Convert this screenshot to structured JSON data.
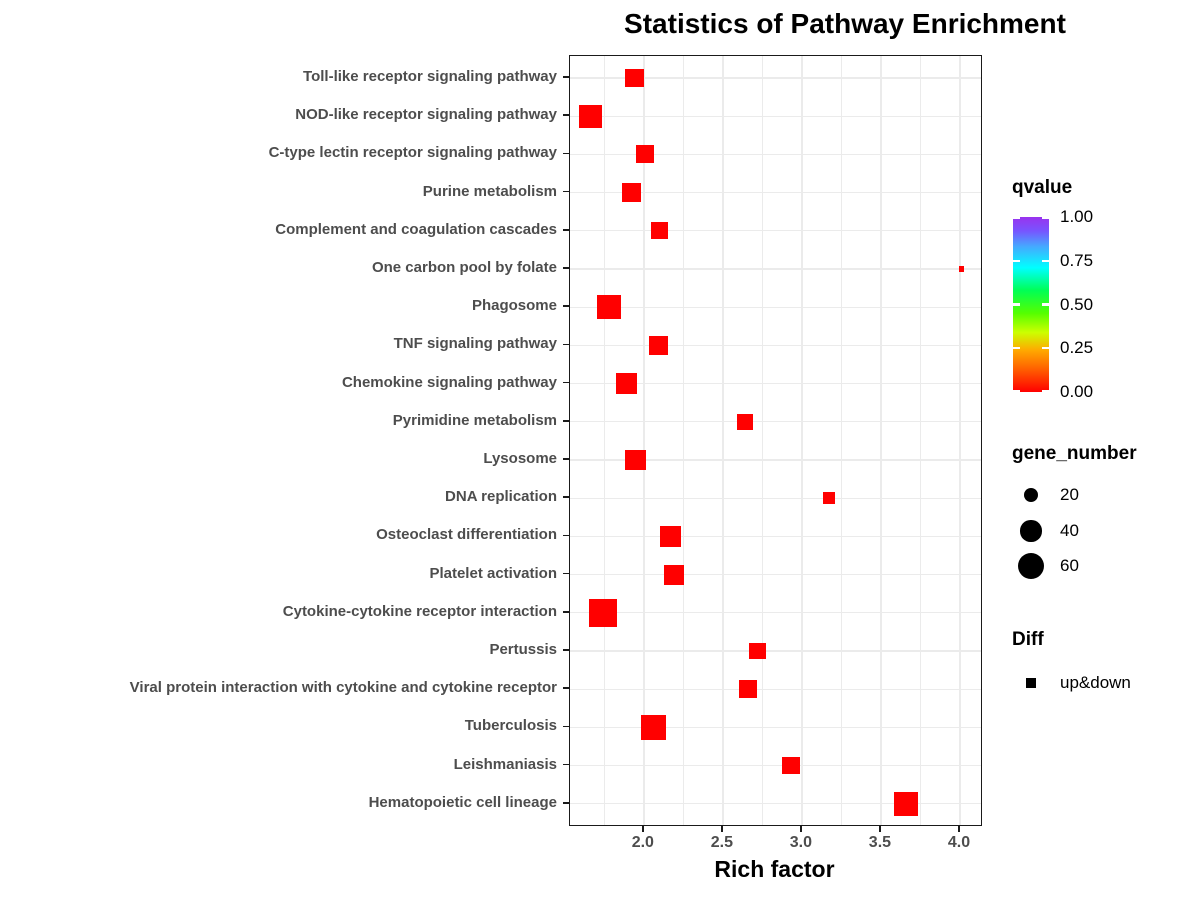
{
  "title": "Statistics of Pathway Enrichment",
  "x_axis": {
    "label": "Rich factor",
    "tick_labels": [
      "2.0",
      "2.5",
      "3.0",
      "3.5",
      "4.0"
    ],
    "tick_values": [
      2.0,
      2.5,
      3.0,
      3.5,
      4.0
    ],
    "minor_gridline_values": [
      1.75,
      2.0,
      2.25,
      2.5,
      2.75,
      3.0,
      3.25,
      3.5,
      3.75,
      4.0
    ],
    "min": 1.533,
    "max": 4.133
  },
  "chart_data": {
    "type": "scatter",
    "title": "Statistics of Pathway Enrichment",
    "xlabel": "Rich factor",
    "ylabel": "",
    "xlim": [
      1.533,
      4.133
    ],
    "grid": true,
    "point_shape": "filled-square",
    "point_color": "#ff0000",
    "categories": [
      "Toll-like receptor signaling pathway",
      "NOD-like receptor signaling pathway",
      "C-type lectin receptor signaling pathway",
      "Purine metabolism",
      "Complement and coagulation cascades",
      "One carbon pool by folate",
      "Phagosome",
      "TNF signaling pathway",
      "Chemokine signaling pathway",
      "Pyrimidine metabolism",
      "Lysosome",
      "DNA replication",
      "Osteoclast differentiation",
      "Platelet activation",
      "Cytokine-cytokine receptor interaction",
      "Pertussis",
      "Viral protein interaction with cytokine and cytokine receptor",
      "Tuberculosis",
      "Leishmaniasis",
      "Hematopoietic cell lineage"
    ],
    "series": [
      {
        "name": "up&down",
        "points": [
          {
            "pathway": "Toll-like receptor signaling pathway",
            "rich_factor": 1.94,
            "gene_number": 32,
            "qvalue": 0
          },
          {
            "pathway": "NOD-like receptor signaling pathway",
            "rich_factor": 1.66,
            "gene_number": 47,
            "qvalue": 0
          },
          {
            "pathway": "C-type lectin receptor signaling pathway",
            "rich_factor": 2.01,
            "gene_number": 29,
            "qvalue": 0
          },
          {
            "pathway": "Purine metabolism",
            "rich_factor": 1.92,
            "gene_number": 32,
            "qvalue": 0
          },
          {
            "pathway": "Complement and coagulation cascades",
            "rich_factor": 2.1,
            "gene_number": 26,
            "qvalue": 0
          },
          {
            "pathway": "One carbon pool by folate",
            "rich_factor": 4.01,
            "gene_number": 3,
            "qvalue": 0
          },
          {
            "pathway": "Phagosome",
            "rich_factor": 1.78,
            "gene_number": 51,
            "qvalue": 0
          },
          {
            "pathway": "TNF signaling pathway",
            "rich_factor": 2.09,
            "gene_number": 32,
            "qvalue": 0
          },
          {
            "pathway": "Chemokine signaling pathway",
            "rich_factor": 1.89,
            "gene_number": 42,
            "qvalue": 0
          },
          {
            "pathway": "Pyrimidine metabolism",
            "rich_factor": 2.64,
            "gene_number": 23,
            "qvalue": 0
          },
          {
            "pathway": "Lysosome",
            "rich_factor": 1.95,
            "gene_number": 39,
            "qvalue": 0
          },
          {
            "pathway": "DNA replication",
            "rich_factor": 3.17,
            "gene_number": 14,
            "qvalue": 0
          },
          {
            "pathway": "Osteoclast differentiation",
            "rich_factor": 2.17,
            "gene_number": 38,
            "qvalue": 0
          },
          {
            "pathway": "Platelet activation",
            "rich_factor": 2.19,
            "gene_number": 36,
            "qvalue": 0
          },
          {
            "pathway": "Cytokine-cytokine receptor interaction",
            "rich_factor": 1.74,
            "gene_number": 70,
            "qvalue": 0
          },
          {
            "pathway": "Pertussis",
            "rich_factor": 2.72,
            "gene_number": 25,
            "qvalue": 0
          },
          {
            "pathway": "Viral protein interaction with cytokine and cytokine receptor",
            "rich_factor": 2.66,
            "gene_number": 27,
            "qvalue": 0
          },
          {
            "pathway": "Tuberculosis",
            "rich_factor": 2.06,
            "gene_number": 54,
            "qvalue": 0
          },
          {
            "pathway": "Leishmaniasis",
            "rich_factor": 2.93,
            "gene_number": 27,
            "qvalue": 0
          },
          {
            "pathway": "Hematopoietic cell lineage",
            "rich_factor": 3.66,
            "gene_number": 51,
            "qvalue": 0
          }
        ]
      }
    ]
  },
  "legend": {
    "qvalue": {
      "title": "qvalue",
      "labels": [
        "1.00",
        "0.75",
        "0.50",
        "0.25",
        "0.00"
      ],
      "gradient_stops_bottom_to_top": [
        "#ff0000 0%",
        "#ff6600 14%",
        "#ffaa00 24%",
        "#ccff00 34%",
        "#55ff00 45%",
        "#00ff55 58%",
        "#00ffff 71%",
        "#44aaff 83%",
        "#7755ff 92%",
        "#9933ee 100%"
      ]
    },
    "gene_number": {
      "title": "gene_number",
      "entries": [
        {
          "label": "20",
          "value": 20
        },
        {
          "label": "40",
          "value": 40
        },
        {
          "label": "60",
          "value": 60
        }
      ]
    },
    "diff": {
      "title": "Diff",
      "entries": [
        {
          "label": "up&down"
        }
      ]
    }
  },
  "colors": {
    "point": "#ff0000",
    "axis_text": "#4d4d4d",
    "grid": "#ebebeb",
    "panel_border": "#1a1a1a"
  }
}
